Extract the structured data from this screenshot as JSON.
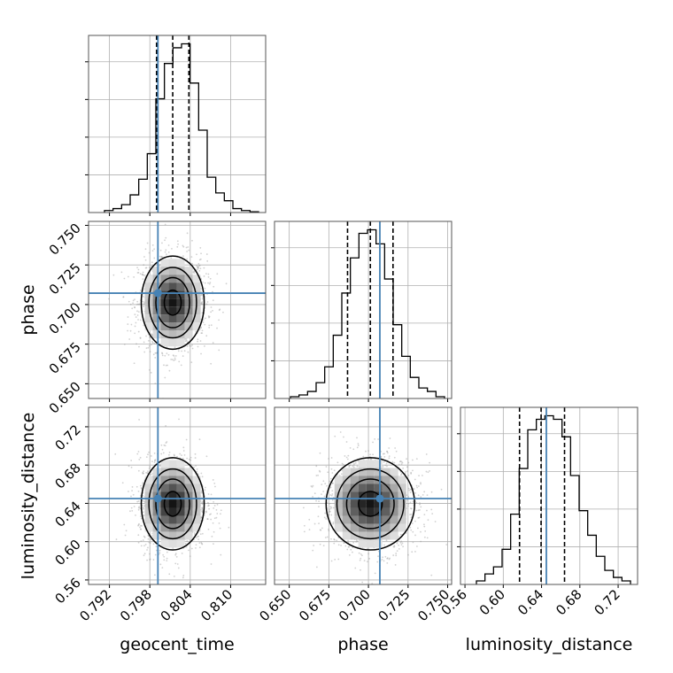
{
  "chart_data": {
    "type": "corner",
    "parameters": [
      "geocent_time",
      "phase",
      "luminosity_distance"
    ],
    "axis_labels": {
      "geocent_time": "geocent_time",
      "phase": "phase",
      "luminosity_distance": "luminosity_distance"
    },
    "ticks": {
      "geocent_time": [
        "0.792",
        "0.798",
        "0.804",
        "0.810"
      ],
      "phase": [
        "0.650",
        "0.675",
        "0.700",
        "0.725",
        "0.750"
      ],
      "luminosity_distance": [
        "0.56",
        "0.60",
        "0.64",
        "0.68",
        "0.72"
      ]
    },
    "ranges": {
      "geocent_time": [
        0.7889,
        0.8152
      ],
      "phase": [
        0.6407,
        0.7525
      ],
      "luminosity_distance": [
        0.5553,
        0.7403
      ]
    },
    "injection": {
      "geocent_time": 0.7992,
      "phase": 0.7072,
      "luminosity_distance": 0.645
    },
    "quantiles": {
      "geocent_time": [
        0.799,
        0.8014,
        0.8038
      ],
      "phase": [
        0.6868,
        0.7012,
        0.7155
      ],
      "luminosity_distance": [
        0.617,
        0.6395,
        0.664
      ]
    },
    "hist_1d": {
      "geocent_time": [
        0.5,
        1,
        2,
        4.5,
        8.5,
        15,
        29,
        38,
        42,
        43,
        33,
        21,
        9,
        5,
        3,
        1,
        0.5,
        0.2
      ],
      "phase": [
        0.5,
        1,
        2,
        4.5,
        9,
        18,
        30,
        40,
        47,
        48,
        44,
        34,
        21,
        12,
        6,
        3,
        2,
        0.5
      ],
      "luminosity_distance": [
        1,
        3,
        5,
        10,
        20,
        33,
        44,
        47,
        48,
        47,
        42,
        31,
        21,
        14,
        8,
        4,
        2,
        1
      ]
    },
    "colors": {
      "injection": "#4682b4",
      "hist": "#000000",
      "grid": "#b0b0b0"
    },
    "grid": true
  }
}
